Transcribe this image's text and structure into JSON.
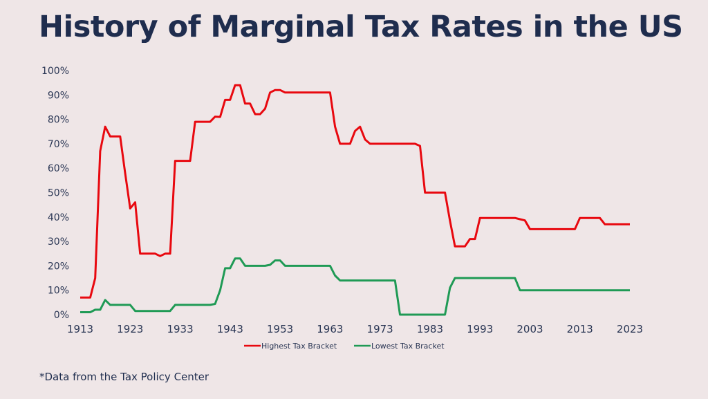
{
  "title": "History of Marginal Tax Rates in the US",
  "footnote": "*Data from the Tax Policy Center",
  "chart_data": {
    "type": "line",
    "title": "History of Marginal Tax Rates in the US",
    "xlabel": "",
    "ylabel": "",
    "xlim": [
      1913,
      2023
    ],
    "ylim": [
      0,
      100
    ],
    "grid": false,
    "legend_position": "bottom",
    "x_ticks": [
      "1913",
      "1923",
      "1933",
      "1943",
      "1953",
      "1963",
      "1973",
      "1983",
      "1993",
      "2003",
      "2013",
      "2023"
    ],
    "y_ticks": [
      "0%",
      "10%",
      "20%",
      "30%",
      "40%",
      "50%",
      "60%",
      "70%",
      "80%",
      "90%",
      "100%"
    ],
    "x": [
      1913,
      1914,
      1915,
      1916,
      1917,
      1918,
      1919,
      1920,
      1921,
      1922,
      1923,
      1924,
      1925,
      1926,
      1927,
      1928,
      1929,
      1930,
      1931,
      1932,
      1933,
      1934,
      1935,
      1936,
      1937,
      1938,
      1939,
      1940,
      1941,
      1942,
      1943,
      1944,
      1945,
      1946,
      1947,
      1948,
      1949,
      1950,
      1951,
      1952,
      1953,
      1954,
      1955,
      1956,
      1957,
      1958,
      1959,
      1960,
      1961,
      1962,
      1963,
      1964,
      1965,
      1966,
      1967,
      1968,
      1969,
      1970,
      1971,
      1972,
      1973,
      1974,
      1975,
      1976,
      1977,
      1978,
      1979,
      1980,
      1981,
      1982,
      1983,
      1984,
      1985,
      1986,
      1987,
      1988,
      1989,
      1990,
      1991,
      1992,
      1993,
      1994,
      1995,
      1996,
      1997,
      1998,
      1999,
      2000,
      2001,
      2002,
      2003,
      2004,
      2005,
      2006,
      2007,
      2008,
      2009,
      2010,
      2011,
      2012,
      2013,
      2014,
      2015,
      2016,
      2017,
      2018,
      2019,
      2020,
      2021,
      2022,
      2023
    ],
    "series": [
      {
        "name": "Highest Tax Bracket",
        "color": "#e8080f",
        "values": [
          7,
          7,
          7,
          15,
          67,
          77,
          73,
          73,
          73,
          58,
          43.5,
          46,
          25,
          25,
          25,
          25,
          24,
          25,
          25,
          63,
          63,
          63,
          63,
          79,
          79,
          79,
          79,
          81.1,
          81,
          88,
          88,
          94,
          94,
          86.45,
          86.45,
          82.13,
          82.13,
          84.36,
          91,
          92,
          92,
          91,
          91,
          91,
          91,
          91,
          91,
          91,
          91,
          91,
          91,
          77,
          70,
          70,
          70,
          75.25,
          77,
          71.75,
          70,
          70,
          70,
          70,
          70,
          70,
          70,
          70,
          70,
          70,
          69.13,
          50,
          50,
          50,
          50,
          50,
          38.5,
          28,
          28,
          28,
          31,
          31,
          39.6,
          39.6,
          39.6,
          39.6,
          39.6,
          39.6,
          39.6,
          39.6,
          39.1,
          38.6,
          35,
          35,
          35,
          35,
          35,
          35,
          35,
          35,
          35,
          35,
          39.6,
          39.6,
          39.6,
          39.6,
          39.6,
          37,
          37,
          37,
          37,
          37,
          37
        ]
      },
      {
        "name": "Lowest Tax Bracket",
        "color": "#1f9a55",
        "values": [
          1,
          1,
          1,
          2,
          2,
          6,
          4,
          4,
          4,
          4,
          4,
          1.5,
          1.5,
          1.5,
          1.5,
          1.5,
          1.5,
          1.5,
          1.5,
          4,
          4,
          4,
          4,
          4,
          4,
          4,
          4,
          4.4,
          10,
          19,
          19,
          23,
          23,
          20,
          20,
          20,
          20,
          20,
          20.4,
          22.2,
          22.2,
          20,
          20,
          20,
          20,
          20,
          20,
          20,
          20,
          20,
          20,
          16,
          14,
          14,
          14,
          14,
          14,
          14,
          14,
          14,
          14,
          14,
          14,
          14,
          0,
          0,
          0,
          0,
          0,
          0,
          0,
          0,
          0,
          0,
          11,
          15,
          15,
          15,
          15,
          15,
          15,
          15,
          15,
          15,
          15,
          15,
          15,
          15,
          10,
          10,
          10,
          10,
          10,
          10,
          10,
          10,
          10,
          10,
          10,
          10,
          10,
          10,
          10,
          10,
          10,
          10,
          10,
          10,
          10,
          10,
          10
        ]
      }
    ]
  }
}
